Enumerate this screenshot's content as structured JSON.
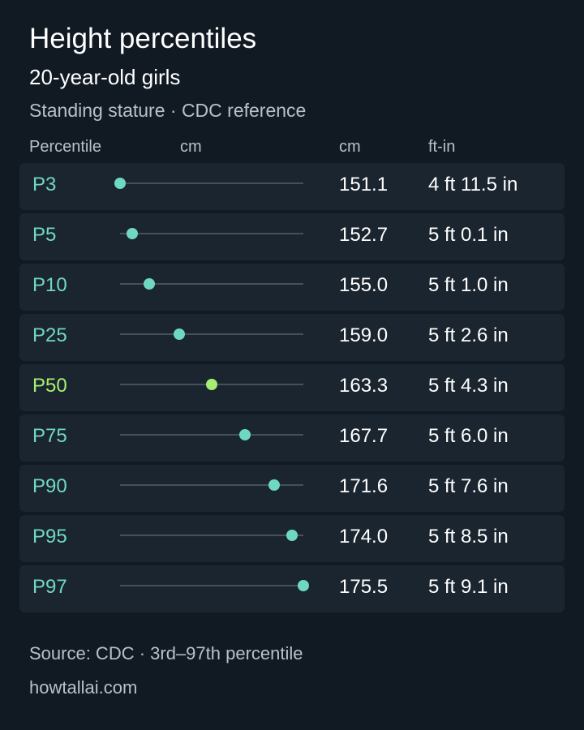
{
  "header": {
    "title": "Height percentiles",
    "subtitle": "20-year-old girls",
    "caption": "Standing stature · CDC reference"
  },
  "columns": {
    "percentile": "Percentile",
    "scale": "cm",
    "cm": "cm",
    "ftin": "ft-in"
  },
  "chart_data": {
    "type": "scatter",
    "xlim": [
      151.1,
      175.5
    ],
    "categories": [
      "P3",
      "P5",
      "P10",
      "P25",
      "P50",
      "P75",
      "P90",
      "P95",
      "P97"
    ],
    "values": [
      151.1,
      152.7,
      155.0,
      159.0,
      163.3,
      167.7,
      171.6,
      174.0,
      175.5
    ],
    "value_labels": [
      "151.1",
      "152.7",
      "155.0",
      "159.0",
      "163.3",
      "167.7",
      "171.6",
      "174.0",
      "175.5"
    ],
    "ft_in": [
      "4 ft 11.5 in",
      "5 ft 0.1 in",
      "5 ft 1.0 in",
      "5 ft 2.6 in",
      "5 ft 4.3 in",
      "5 ft 6.0 in",
      "5 ft 7.6 in",
      "5 ft 8.5 in",
      "5 ft 9.1 in"
    ],
    "highlight": "P50",
    "colors": {
      "point": "#6fd8c4",
      "highlight": "#a6ee72",
      "track": "#44515c"
    }
  },
  "footer": {
    "source": "Source: CDC · 3rd–97th percentile",
    "site": "howtallai.com"
  }
}
